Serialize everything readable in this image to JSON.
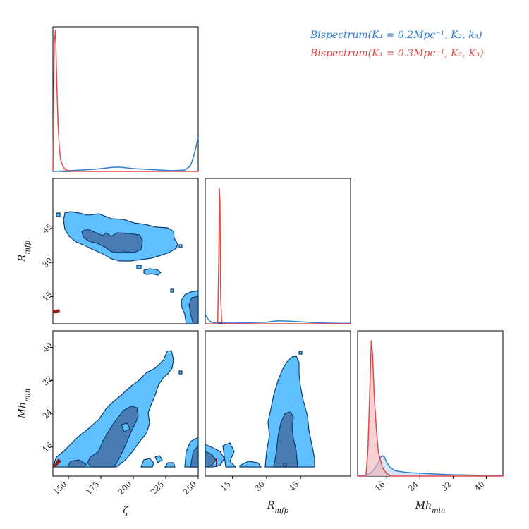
{
  "colors": {
    "blue_line": "#2c7fd1",
    "blue_fill_outer": "#5fbfff",
    "blue_fill_inner": "#4a7cb4",
    "contour_edge": "#0b3f6e",
    "red_line": "#e04848",
    "red_fill": "#f4b4b4",
    "dark_red": "#8b1a1a"
  },
  "legend": {
    "items": [
      {
        "label": "Bispectrum(K_1 = 0.2Mpc^{-1}, K_2, k_3)",
        "display": "Bispectrum(K₁ = 0.2Mpc⁻¹, K₂, k₃)",
        "color": "#2c7fd1"
      },
      {
        "label": "Bispectrum(K_1 = 0.3Mpc^{-1}, K_2, K_3)",
        "display": "Bispectrum(K₁ = 0.3Mpc⁻¹, K₂, K₃)",
        "color": "#e04848"
      }
    ]
  },
  "chart_data": [
    {
      "type": "line",
      "panel": "zeta-marginal",
      "xlabel": "ζ",
      "xlim": [
        138,
        250
      ],
      "series": [
        {
          "name": "Bispectrum(K_1 = 0.2Mpc^{-1}, K_2, k_3)",
          "x": [
            138,
            150,
            160,
            170,
            180,
            185,
            190,
            195,
            200,
            210,
            220,
            230,
            240,
            244,
            246,
            248,
            250
          ],
          "y": [
            0.0,
            0.005,
            0.01,
            0.015,
            0.025,
            0.03,
            0.03,
            0.025,
            0.02,
            0.015,
            0.01,
            0.005,
            0.01,
            0.04,
            0.09,
            0.16,
            0.24
          ]
        },
        {
          "name": "Bispectrum(K_1 = 0.3Mpc^{-1}, K_2, K_3)",
          "x": [
            138,
            139,
            140,
            141,
            142,
            143,
            144,
            146,
            148,
            150,
            155,
            160,
            250
          ],
          "y": [
            0.0,
            0.9,
            1.0,
            0.62,
            0.32,
            0.16,
            0.08,
            0.03,
            0.012,
            0.005,
            0.001,
            0.0,
            0.0
          ]
        }
      ]
    },
    {
      "type": "heatmap",
      "panel": "zeta-vs-Rmfp",
      "xlabel": "ζ",
      "ylabel": "R_mfp",
      "xlim": [
        138,
        250
      ],
      "ylim": [
        3,
        67
      ],
      "xticks": [
        150,
        175,
        200,
        225,
        250
      ],
      "yticks": [
        15,
        30,
        45
      ]
    },
    {
      "type": "line",
      "panel": "Rmfp-marginal",
      "xlabel": "R_mfp",
      "xlim": [
        3,
        67
      ],
      "series": [
        {
          "name": "Bispectrum(K_1 = 0.2Mpc^{-1}, K_2, k_3)",
          "x": [
            3,
            4,
            5,
            6,
            8,
            10,
            15,
            20,
            25,
            30,
            33,
            36,
            40,
            45,
            50,
            55,
            60,
            67
          ],
          "y": [
            0.07,
            0.04,
            0.02,
            0.01,
            0.008,
            0.006,
            0.005,
            0.006,
            0.01,
            0.012,
            0.02,
            0.022,
            0.02,
            0.015,
            0.01,
            0.006,
            0.004,
            0.003
          ]
        },
        {
          "name": "Bispectrum(K_1 = 0.3Mpc^{-1}, K_2, K_3)",
          "x": [
            3,
            8.5,
            9,
            9.2,
            9.5,
            9.8,
            10.2,
            11,
            67
          ],
          "y": [
            0.0,
            0.0,
            0.5,
            1.0,
            0.9,
            0.2,
            0.02,
            0.0,
            0.0
          ]
        }
      ]
    },
    {
      "type": "heatmap",
      "panel": "zeta-vs-Mhmin",
      "xlabel": "ζ",
      "ylabel": "Mh_min",
      "xlim": [
        138,
        250
      ],
      "ylim": [
        9,
        44
      ],
      "xticks": [
        150,
        175,
        200,
        225,
        250
      ],
      "yticks": [
        16,
        24,
        32,
        40
      ]
    },
    {
      "type": "heatmap",
      "panel": "Rmfp-vs-Mhmin",
      "xlabel": "R_mfp",
      "ylabel": "Mh_min",
      "xlim": [
        3,
        67
      ],
      "ylim": [
        9,
        44
      ],
      "xticks": [
        15,
        30,
        45
      ],
      "yticks": [
        16,
        24,
        32,
        40
      ]
    },
    {
      "type": "area",
      "panel": "Mhmin-marginal",
      "xlabel": "Mh_min",
      "xlim": [
        9,
        44
      ],
      "xticks": [
        16,
        24,
        32,
        40
      ],
      "series": [
        {
          "name": "Bispectrum(K_1 = 0.2Mpc^{-1}, K_2, k_3)",
          "x": [
            9,
            10,
            11,
            12,
            13,
            14,
            14.5,
            15,
            15.5,
            16,
            17,
            18,
            20,
            22,
            25,
            28,
            32,
            36,
            40,
            44
          ],
          "y": [
            0.0,
            0.0,
            0.01,
            0.02,
            0.05,
            0.1,
            0.14,
            0.15,
            0.14,
            0.1,
            0.06,
            0.04,
            0.03,
            0.025,
            0.02,
            0.015,
            0.01,
            0.008,
            0.005,
            0.003
          ]
        },
        {
          "name": "Bispectrum(K_1 = 0.3Mpc^{-1}, K_2, K_3)",
          "x": [
            9,
            11,
            11.5,
            12,
            12.3,
            12.6,
            13,
            13.5,
            14,
            15,
            16,
            17,
            44
          ],
          "y": [
            0.0,
            0.0,
            0.2,
            0.7,
            1.0,
            0.9,
            0.6,
            0.35,
            0.18,
            0.06,
            0.02,
            0.0,
            0.0
          ]
        }
      ]
    }
  ]
}
